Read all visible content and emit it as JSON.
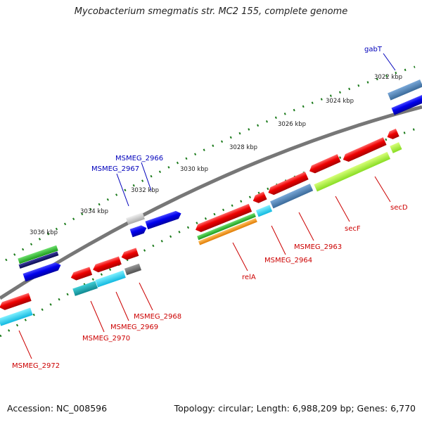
{
  "title": "Mycobacterium smegmatis str. MC2 155, complete genome",
  "accession": "Accession: NC_008596",
  "topology": "Topology: circular; Length: 6,988,209 bp; Genes: 6,770",
  "ticks": [
    "3036 kbp",
    "3034 kbp",
    "3032 kbp",
    "3030 kbp",
    "3028 kbp",
    "3026 kbp",
    "3024 kbp",
    "3022 kbp"
  ],
  "genes_forward": [
    {
      "name": "gabT",
      "color": "#0000bb"
    },
    {
      "name": "MSMEG_2966",
      "color": "#0000bb"
    },
    {
      "name": "MSMEG_2967",
      "color": "#0000bb"
    }
  ],
  "genes_reverse": [
    {
      "name": "secD",
      "color": "#cc0000"
    },
    {
      "name": "secF",
      "color": "#cc0000"
    },
    {
      "name": "MSMEG_2963",
      "color": "#cc0000"
    },
    {
      "name": "MSMEG_2964",
      "color": "#cc0000"
    },
    {
      "name": "relA",
      "color": "#cc0000"
    },
    {
      "name": "MSMEG_2968",
      "color": "#cc0000"
    },
    {
      "name": "MSMEG_2969",
      "color": "#cc0000"
    },
    {
      "name": "MSMEG_2970",
      "color": "#cc0000"
    },
    {
      "name": "MSMEG_2972",
      "color": "#cc0000"
    }
  ],
  "colors": {
    "backbone": "#7a7a7a",
    "cds_forward": "#0000ee",
    "cds_reverse": "#ee0000",
    "tick": "#1a7a1a",
    "label_forward": "#0000bb",
    "label_reverse": "#cc0000"
  }
}
